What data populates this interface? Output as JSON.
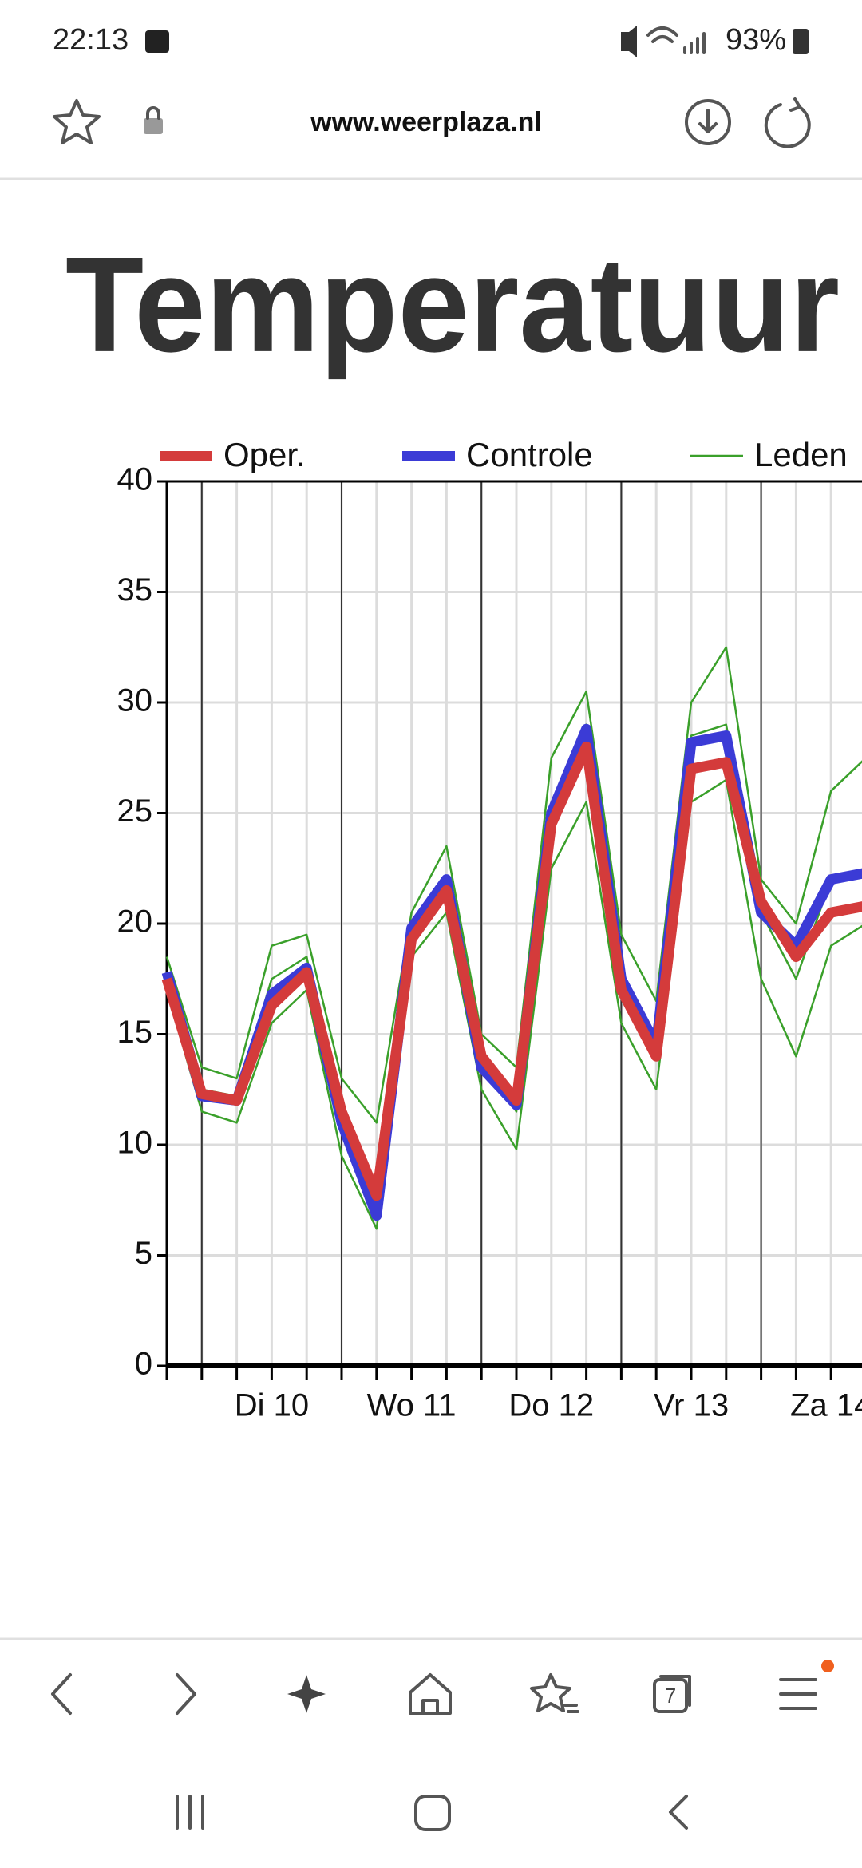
{
  "status_bar": {
    "time": "22:13",
    "battery": "93%"
  },
  "browser": {
    "url": "www.weerplaza.nl",
    "tab_count": 7
  },
  "page": {
    "heading": "Temperatuur"
  },
  "chart_data": {
    "type": "line",
    "categories": [
      null,
      null,
      null,
      "Di 10",
      null,
      null,
      null,
      "Wo 11",
      null,
      null,
      null,
      "Do 12",
      null,
      null,
      null,
      "Vr 13",
      null,
      null,
      null,
      "Za 14",
      null
    ],
    "series": [
      {
        "name": "Oper.",
        "color": "#d43b3b",
        "values": [
          17.5,
          12.3,
          12.0,
          16.3,
          17.8,
          11.5,
          7.7,
          19.3,
          21.5,
          14.0,
          12.0,
          24.5,
          28.0,
          17.0,
          14.0,
          27.0,
          27.3,
          21.0,
          18.5,
          20.5,
          20.8
        ]
      },
      {
        "name": "Controle",
        "color": "#3b3bd6",
        "values": [
          17.8,
          12.2,
          12.0,
          16.8,
          18.0,
          11.0,
          6.8,
          19.8,
          22.0,
          13.5,
          11.8,
          25.0,
          28.8,
          17.5,
          14.5,
          28.2,
          28.5,
          20.5,
          19.0,
          22.0,
          22.3
        ]
      },
      {
        "name": "Leden",
        "color": "#3aa02a",
        "members": [
          [
            18.5,
            13.5,
            13.0,
            19.0,
            19.5,
            13.0,
            11.0,
            20.5,
            23.5,
            15.0,
            13.5,
            27.5,
            30.5,
            19.5,
            16.5,
            30.0,
            32.5,
            22.0,
            20.0,
            26.0,
            27.5
          ],
          [
            17.0,
            11.5,
            11.0,
            15.5,
            17.0,
            9.5,
            6.2,
            18.5,
            20.5,
            12.5,
            9.8,
            22.5,
            25.5,
            15.5,
            12.5,
            25.5,
            26.5,
            17.5,
            14.0,
            19.0,
            20.0
          ],
          [
            17.8,
            12.5,
            12.2,
            17.5,
            18.5,
            11.0,
            7.5,
            19.5,
            22.0,
            14.0,
            11.5,
            25.0,
            29.0,
            17.5,
            14.5,
            28.5,
            29.0,
            20.5,
            17.5,
            22.0,
            22.5
          ]
        ]
      }
    ],
    "ylim": [
      0,
      40
    ],
    "yticks": [
      0,
      5,
      10,
      15,
      20,
      25,
      30,
      35,
      40
    ],
    "grid": true
  }
}
